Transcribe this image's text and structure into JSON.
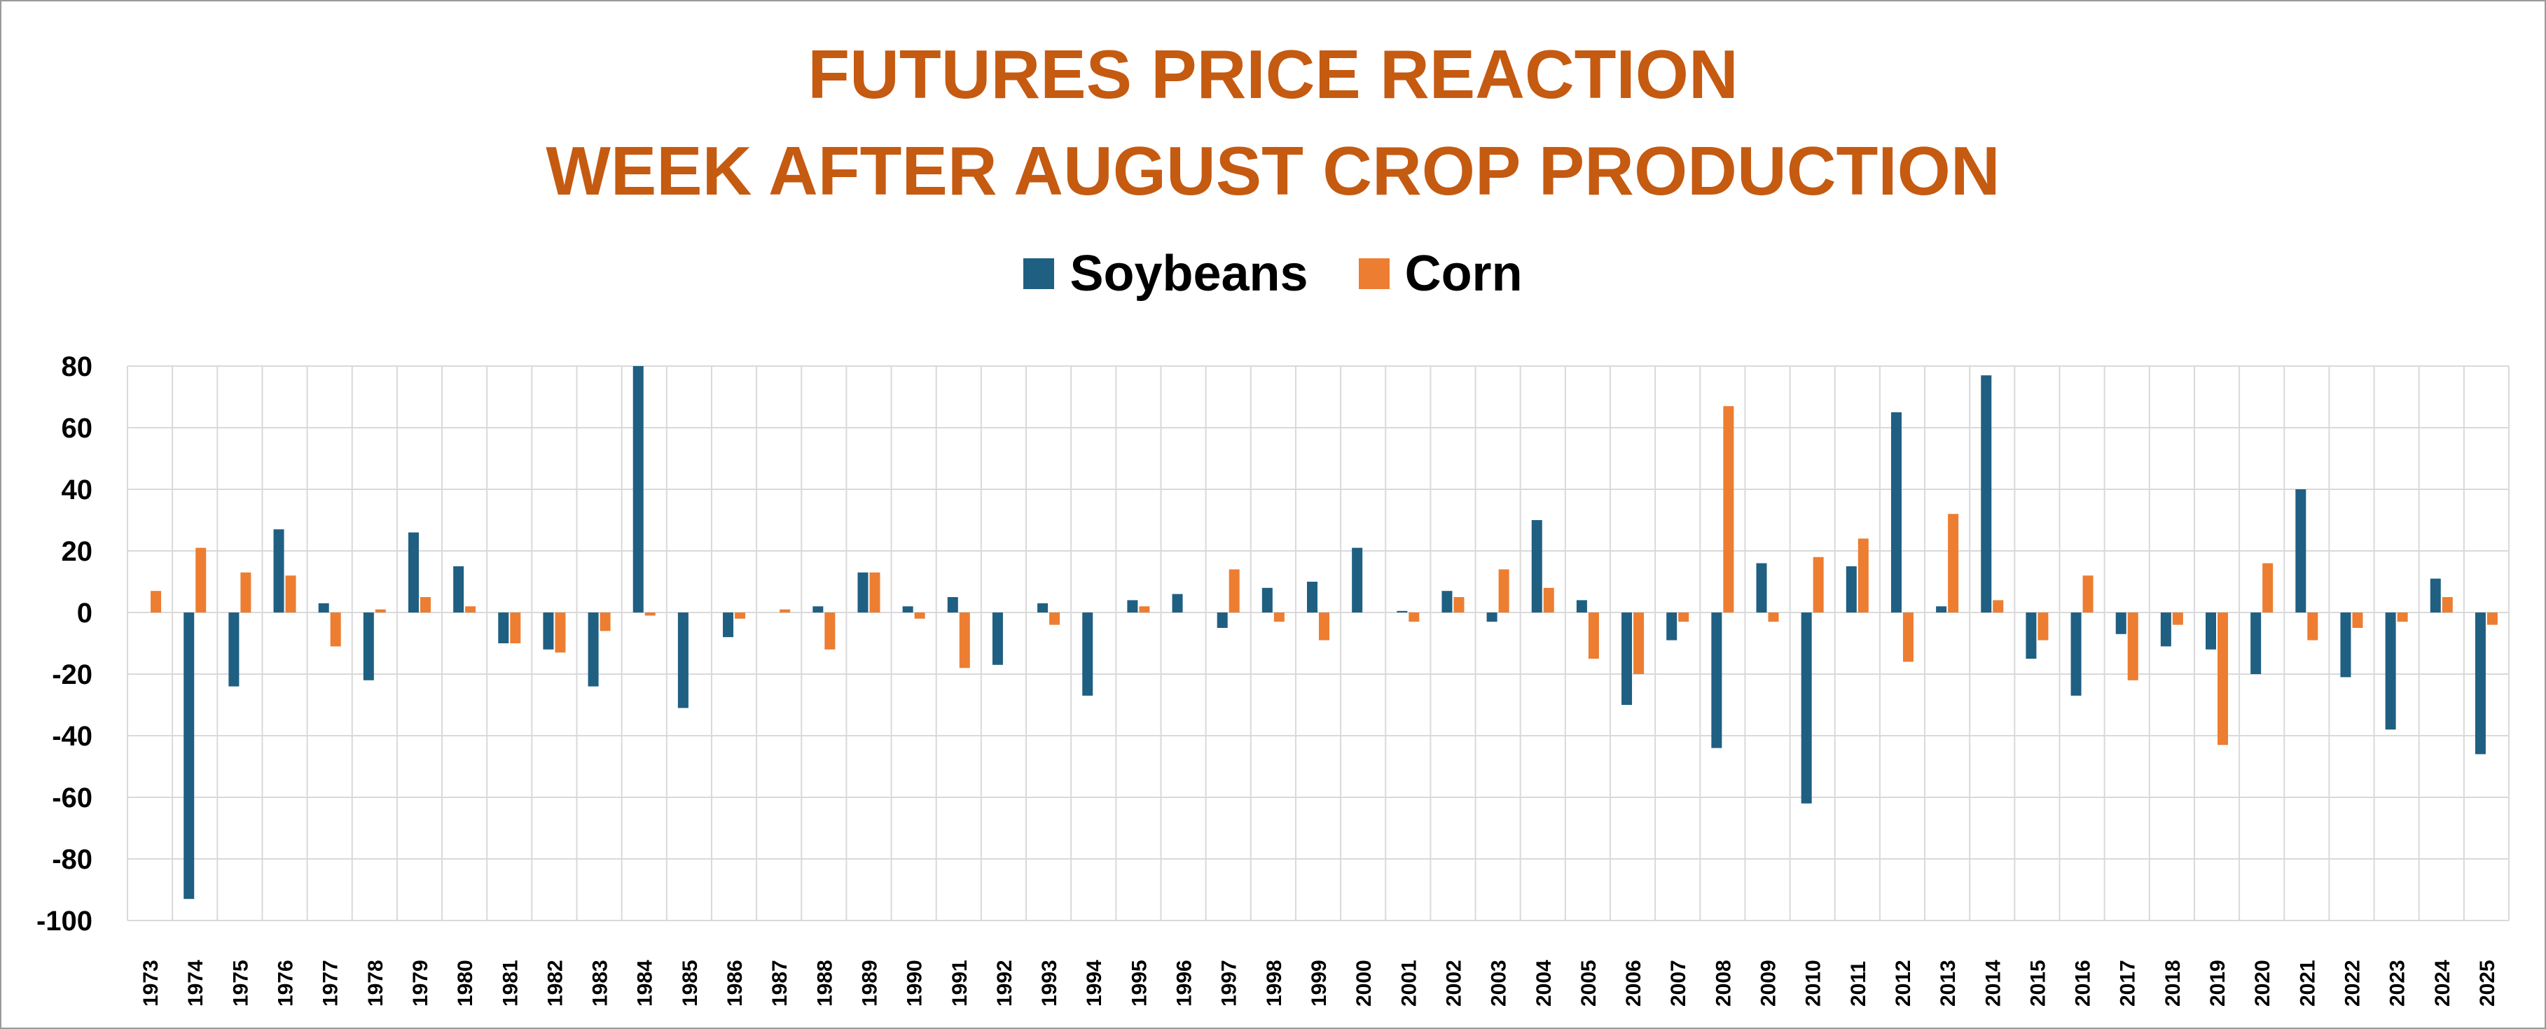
{
  "chart_data": {
    "type": "bar",
    "title": "FUTURES PRICE REACTION",
    "subtitle": "WEEK AFTER AUGUST CROP PRODUCTION",
    "xlabel": "",
    "ylabel": "",
    "ylim": [
      -100,
      80
    ],
    "yticks": [
      80,
      60,
      40,
      20,
      0,
      -20,
      -40,
      -60,
      -80,
      -100
    ],
    "grid": true,
    "legend_position": "top-center",
    "categories": [
      "1973",
      "1974",
      "1975",
      "1976",
      "1977",
      "1978",
      "1979",
      "1980",
      "1981",
      "1982",
      "1983",
      "1984",
      "1985",
      "1986",
      "1987",
      "1988",
      "1989",
      "1990",
      "1991",
      "1992",
      "1993",
      "1994",
      "1995",
      "1996",
      "1997",
      "1998",
      "1999",
      "2000",
      "2001",
      "2002",
      "2003",
      "2004",
      "2005",
      "2006",
      "2007",
      "2008",
      "2009",
      "2010",
      "2011",
      "2012",
      "2013",
      "2014",
      "2015",
      "2016",
      "2017",
      "2018",
      "2019",
      "2020",
      "2021",
      "2022",
      "2023",
      "2024",
      "2025"
    ],
    "series": [
      {
        "name": "Soybeans",
        "color": "#1f5f82",
        "values": [
          0,
          -93,
          -24,
          27,
          3,
          -22,
          26,
          15,
          -10,
          -12,
          -24,
          80,
          -31,
          -8,
          0,
          2,
          13,
          2,
          5,
          -17,
          3,
          -27,
          4,
          6,
          -5,
          8,
          10,
          21,
          0.5,
          7,
          -3,
          30,
          4,
          -30,
          -9,
          -44,
          16,
          -62,
          15,
          65,
          2,
          77,
          -15,
          -27,
          -7,
          -11,
          -12,
          -20,
          40,
          -21,
          -38,
          11,
          -46
        ]
      },
      {
        "name": "Corn",
        "color": "#ed7d31",
        "values": [
          7,
          21,
          13,
          12,
          -11,
          1,
          5,
          2,
          -10,
          -13,
          -6,
          -1,
          0,
          -2,
          1,
          -12,
          13,
          -2,
          -18,
          0,
          -4,
          0,
          2,
          0,
          14,
          -3,
          -9,
          0,
          -3,
          5,
          14,
          8,
          -15,
          -20,
          -3,
          67,
          -3,
          18,
          24,
          -16,
          32,
          4,
          -9,
          12,
          -22,
          -4,
          -43,
          16,
          -9,
          -5,
          -3,
          5,
          -4
        ]
      }
    ]
  }
}
